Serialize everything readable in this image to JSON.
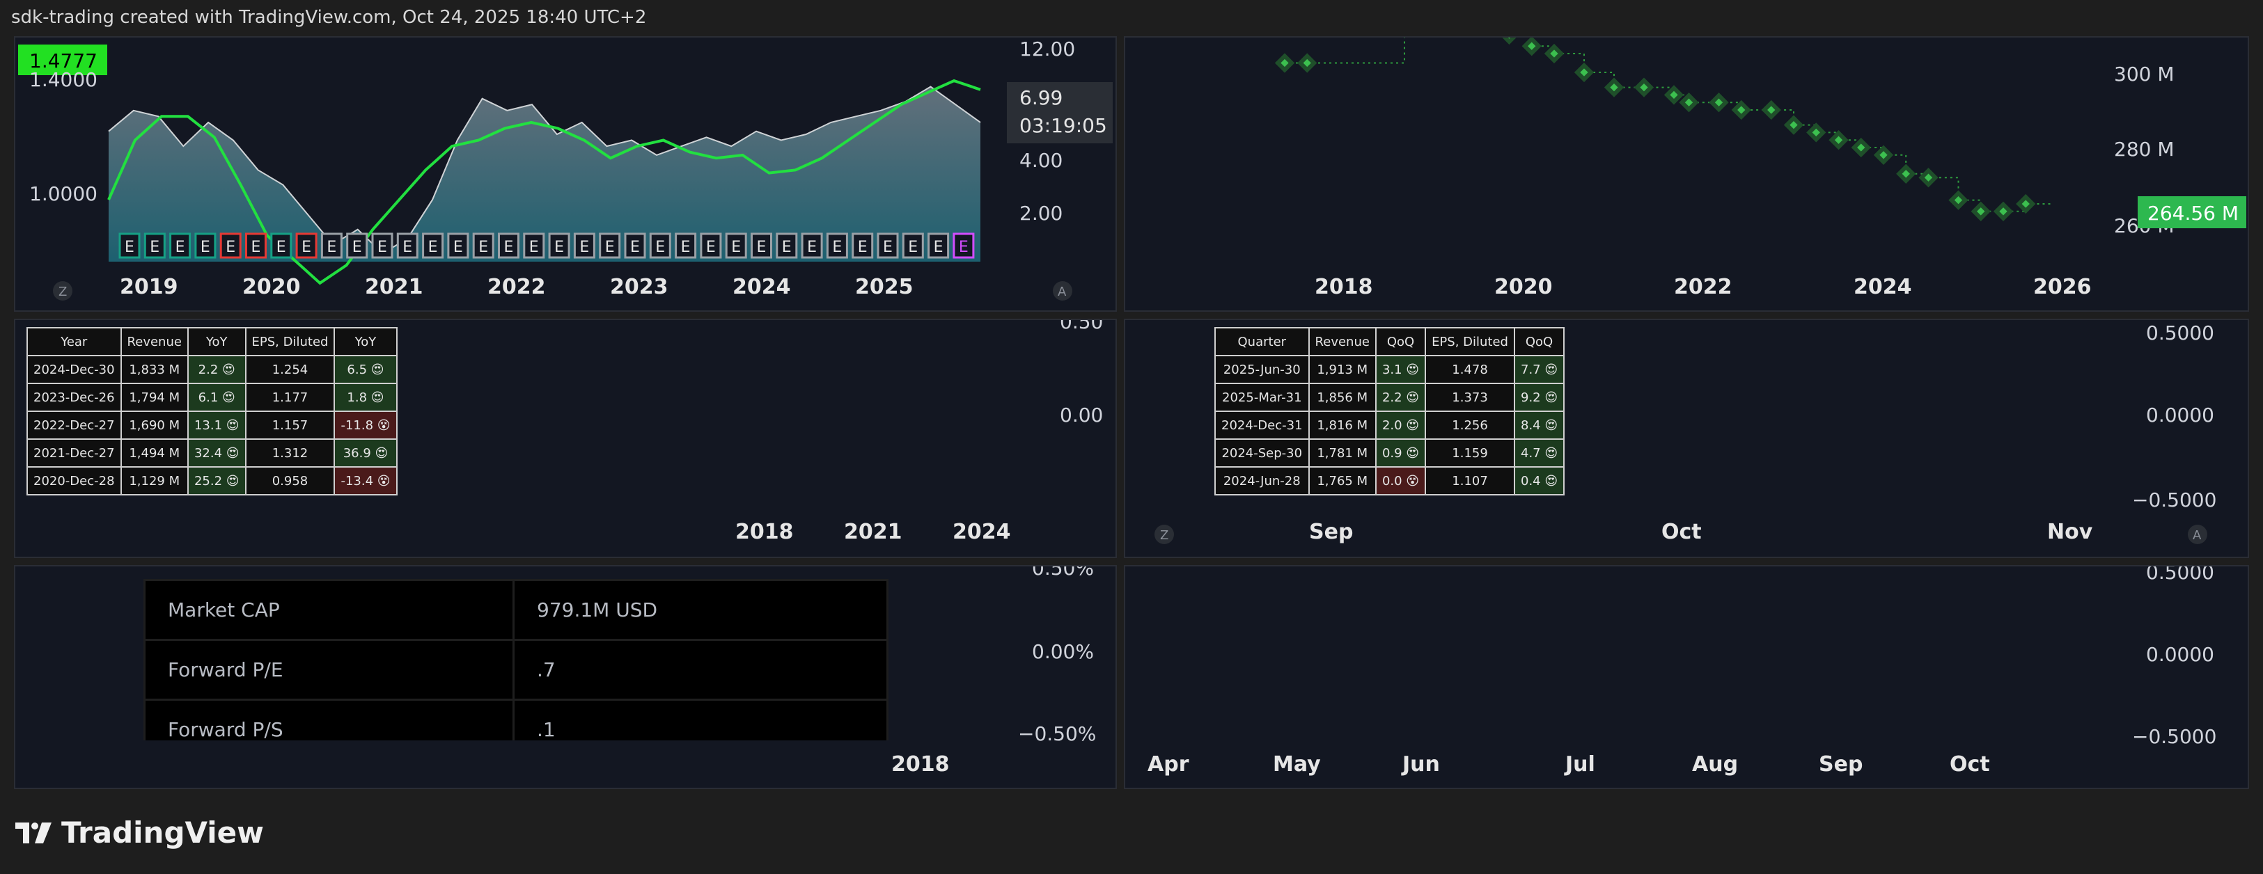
{
  "header": {
    "title": "sdk-trading created with TradingView.com, Oct 24, 2025 18:40 UTC+2"
  },
  "brand": {
    "name": "TradingView"
  },
  "colors": {
    "accent": "#22e040",
    "price_line": "#c8c8c8",
    "earnings_green": "#16a085",
    "earnings_red": "#e53935",
    "badge_green": "#22e022",
    "pill_green": "#2db84f"
  },
  "icons": {
    "z_button": "Z",
    "a_button": "A"
  },
  "panel1": {
    "badge": "1.4777",
    "left_ticks": [
      "1.4000",
      "1.0000"
    ],
    "right_ticks": [
      "12.00",
      "4.00",
      "2.00"
    ],
    "last_price": "6.99",
    "countdown": "03:19:05",
    "x_ticks": [
      "2019",
      "2020",
      "2021",
      "2022",
      "2023",
      "2024",
      "2025"
    ],
    "earnings_marker": "E",
    "btn_left": "Z",
    "btn_right": "A"
  },
  "panel2": {
    "y_ticks": [
      "300 M",
      "280 M",
      "260 M"
    ],
    "x_ticks": [
      "2018",
      "2020",
      "2022",
      "2024",
      "2026"
    ],
    "last_value": "264.56 M"
  },
  "panel3": {
    "y_ticks": [
      "0.50",
      "0.00"
    ],
    "x_ticks": [
      "2018",
      "2021",
      "2024"
    ],
    "table": {
      "headers": [
        "Year",
        "Revenue",
        "YoY",
        "EPS, Diluted",
        "YoY"
      ],
      "rows": [
        {
          "c0": "2024-Dec-30",
          "c1": "1,833 M",
          "c2": "2.2 😍",
          "c3": "1.254",
          "c4": "6.5 😍"
        },
        {
          "c0": "2023-Dec-26",
          "c1": "1,794 M",
          "c2": "6.1 😍",
          "c3": "1.177",
          "c4": "1.8 😍"
        },
        {
          "c0": "2022-Dec-27",
          "c1": "1,690 M",
          "c2": "13.1 😍",
          "c3": "1.157",
          "c4": "-11.8 😵"
        },
        {
          "c0": "2021-Dec-27",
          "c1": "1,494 M",
          "c2": "32.4 😍",
          "c3": "1.312",
          "c4": "36.9 😍"
        },
        {
          "c0": "2020-Dec-28",
          "c1": "1,129 M",
          "c2": "25.2 😍",
          "c3": "0.958",
          "c4": "-13.4 😵"
        }
      ]
    }
  },
  "panel4": {
    "y_ticks": [
      "0.5000",
      "0.0000",
      "−0.5000"
    ],
    "x_ticks": [
      "Sep",
      "Oct",
      "Nov"
    ],
    "btn_left": "Z",
    "btn_right": "A",
    "table": {
      "headers": [
        "Quarter",
        "Revenue",
        "QoQ",
        "EPS, Diluted",
        "QoQ"
      ],
      "rows": [
        {
          "c0": "2025-Jun-30",
          "c1": "1,913 M",
          "c2": "3.1 😍",
          "c3": "1.478",
          "c4": "7.7 😍"
        },
        {
          "c0": "2025-Mar-31",
          "c1": "1,856 M",
          "c2": "2.2 😍",
          "c3": "1.373",
          "c4": "9.2 😍"
        },
        {
          "c0": "2024-Dec-31",
          "c1": "1,816 M",
          "c2": "2.0 😍",
          "c3": "1.256",
          "c4": "8.4 😍"
        },
        {
          "c0": "2024-Sep-30",
          "c1": "1,781 M",
          "c2": "0.9 😍",
          "c3": "1.159",
          "c4": "4.7 😍"
        },
        {
          "c0": "2024-Jun-28",
          "c1": "1,765 M",
          "c2": "0.0 😵",
          "c3": "1.107",
          "c4": "0.4 😍"
        }
      ]
    }
  },
  "panel5": {
    "y_ticks": [
      "0.50%",
      "0.00%",
      "−0.50%"
    ],
    "x_ticks": [
      "2018"
    ],
    "market": [
      {
        "label": "Market CAP",
        "value": "979.1M  USD"
      },
      {
        "label": "Forward P/E",
        "value": ".7"
      },
      {
        "label": "Forward P/S",
        "value": ".1"
      }
    ]
  },
  "panel6": {
    "y_ticks": [
      "0.5000",
      "0.0000",
      "−0.5000"
    ],
    "x_ticks": [
      "Apr",
      "May",
      "Jun",
      "Jul",
      "Aug",
      "Sep",
      "Oct"
    ]
  },
  "chart_data": [
    {
      "type": "line",
      "series": [
        {
          "values": [
            1.33,
            1.4,
            1.38,
            1.28,
            1.36,
            1.3,
            1.2,
            1.15,
            1.05,
            0.95,
            1.0,
            0.92,
            0.97,
            1.1,
            1.3,
            1.44,
            1.4,
            1.42,
            1.32,
            1.36,
            1.28,
            1.3,
            1.25,
            1.28,
            1.31,
            1.28,
            1.33,
            1.3,
            1.32,
            1.36,
            1.38,
            1.4,
            1.43,
            1.48,
            1.42,
            1.36
          ]
        },
        {
          "values": [
            1.1,
            1.3,
            1.38,
            1.38,
            1.31,
            1.15,
            0.98,
            0.9,
            0.82,
            0.88,
            1.0,
            1.1,
            1.2,
            1.28,
            1.3,
            1.34,
            1.36,
            1.34,
            1.3,
            1.24,
            1.28,
            1.3,
            1.26,
            1.24,
            1.25,
            1.19,
            1.2,
            1.24,
            1.3,
            1.36,
            1.42,
            1.46,
            1.5,
            1.47
          ]
        }
      ],
      "x_range": [
        "2018-07",
        "2025-10"
      ],
      "ylim": [
        0.85,
        1.5
      ]
    },
    {
      "type": "scatter",
      "series": [
        {
          "values": [
            [
              "2017-09",
              302.5
            ],
            [
              "2017-12",
              302.5
            ],
            [
              "2019-01",
              318
            ],
            [
              "2019-04",
              318
            ],
            [
              "2019-07",
              318
            ],
            [
              "2019-11",
              313
            ],
            [
              "2020-03",
              310
            ],
            [
              "2020-06",
              307
            ],
            [
              "2020-09",
              305
            ],
            [
              "2021-01",
              300
            ],
            [
              "2021-05",
              296
            ],
            [
              "2021-09",
              296
            ],
            [
              "2022-01",
              294
            ],
            [
              "2022-03",
              292
            ],
            [
              "2022-07",
              292
            ],
            [
              "2022-10",
              290
            ],
            [
              "2023-02",
              290
            ],
            [
              "2023-05",
              286
            ],
            [
              "2023-08",
              284
            ],
            [
              "2023-11",
              282
            ],
            [
              "2024-02",
              280
            ],
            [
              "2024-05",
              278
            ],
            [
              "2024-08",
              273
            ],
            [
              "2024-11",
              272
            ],
            [
              "2025-03",
              266
            ],
            [
              "2025-06",
              263
            ],
            [
              "2025-09",
              263
            ],
            [
              "2025-12",
              265
            ]
          ]
        }
      ],
      "x_range": [
        "2017",
        "2026"
      ],
      "ylim": [
        255,
        320
      ]
    }
  ]
}
